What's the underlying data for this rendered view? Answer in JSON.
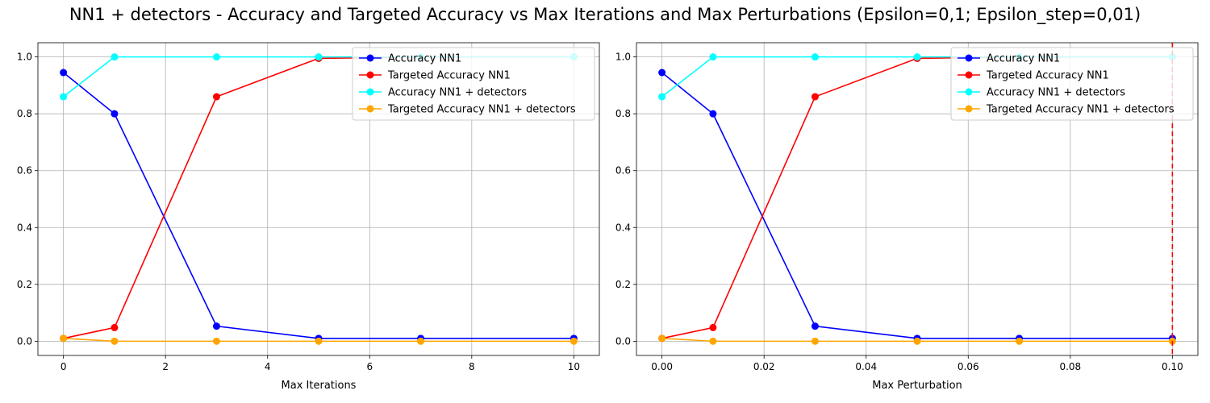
{
  "figure": {
    "title": "NN1 + detectors - Accuracy and Targeted Accuracy vs Max Iterations and Max Perturbations (Epsilon=0,1; Epsilon_step=0,01)"
  },
  "chart_data": [
    {
      "type": "line",
      "xlabel": "Max Iterations",
      "ylabel": "",
      "x": [
        0,
        1,
        3,
        5,
        7,
        10
      ],
      "xlim": [
        -0.5,
        10.5
      ],
      "ylim": [
        -0.05,
        1.05
      ],
      "xticks": [
        0,
        2,
        4,
        6,
        8,
        10
      ],
      "xtick_labels": [
        "0",
        "2",
        "4",
        "6",
        "8",
        "10"
      ],
      "yticks": [
        0,
        0.2,
        0.4,
        0.6,
        0.8,
        1.0
      ],
      "ytick_labels": [
        "0.0",
        "0.2",
        "0.4",
        "0.6",
        "0.8",
        "1.0"
      ],
      "grid": true,
      "legend_position": "top-right",
      "series": [
        {
          "name": "Accuracy NN1",
          "color": "#0000ff",
          "values": [
            0.945,
            0.8,
            0.053,
            0.01,
            0.01,
            0.01
          ]
        },
        {
          "name": "Targeted Accuracy NN1",
          "color": "#ff0000",
          "values": [
            0.01,
            0.048,
            0.86,
            0.995,
            1.0,
            1.0
          ]
        },
        {
          "name": "Accuracy NN1 + detectors",
          "color": "#00ffff",
          "values": [
            0.86,
            1.0,
            1.0,
            1.0,
            1.0,
            1.0
          ]
        },
        {
          "name": "Targeted Accuracy NN1 + detectors",
          "color": "#ffa500",
          "values": [
            0.01,
            0.0,
            0.0,
            0.0,
            0.0,
            0.0
          ]
        }
      ]
    },
    {
      "type": "line",
      "xlabel": "Max Perturbation",
      "ylabel": "",
      "x": [
        0.0,
        0.01,
        0.03,
        0.05,
        0.07,
        0.1
      ],
      "xlim": [
        -0.005,
        0.105
      ],
      "ylim": [
        -0.05,
        1.05
      ],
      "xticks": [
        0.0,
        0.02,
        0.04,
        0.06,
        0.08,
        0.1
      ],
      "xtick_labels": [
        "0.00",
        "0.02",
        "0.04",
        "0.06",
        "0.08",
        "0.10"
      ],
      "yticks": [
        0,
        0.2,
        0.4,
        0.6,
        0.8,
        1.0
      ],
      "ytick_labels": [
        "0.0",
        "0.2",
        "0.4",
        "0.6",
        "0.8",
        "1.0"
      ],
      "grid": true,
      "legend_position": "top-right",
      "vline": {
        "x": 0.1,
        "color": "#ff0000",
        "style": "dashed"
      },
      "series": [
        {
          "name": "Accuracy NN1",
          "color": "#0000ff",
          "values": [
            0.945,
            0.8,
            0.053,
            0.01,
            0.01,
            0.01
          ]
        },
        {
          "name": "Targeted Accuracy NN1",
          "color": "#ff0000",
          "values": [
            0.01,
            0.048,
            0.86,
            0.995,
            1.0,
            1.0
          ]
        },
        {
          "name": "Accuracy NN1 + detectors",
          "color": "#00ffff",
          "values": [
            0.86,
            1.0,
            1.0,
            1.0,
            1.0,
            1.0
          ]
        },
        {
          "name": "Targeted Accuracy NN1 + detectors",
          "color": "#ffa500",
          "values": [
            0.01,
            0.0,
            0.0,
            0.0,
            0.0,
            0.0
          ]
        }
      ]
    }
  ]
}
